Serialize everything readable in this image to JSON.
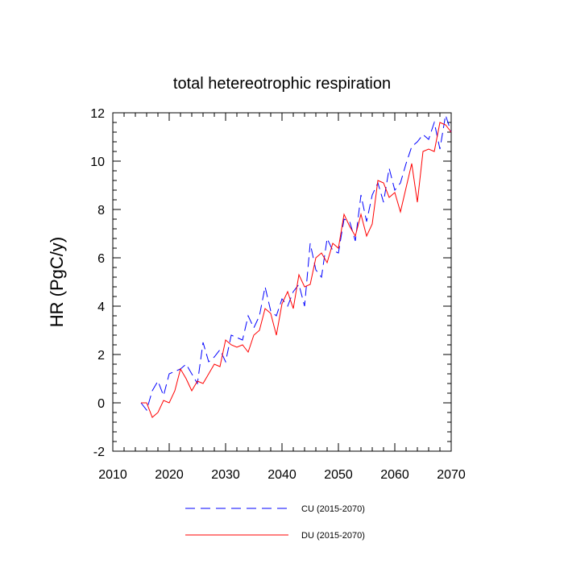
{
  "chart_data": {
    "type": "line",
    "title": "total hetereotrophic respiration",
    "xlabel": "",
    "ylabel": "HR  (PgC/y)",
    "xlim": [
      2010,
      2070
    ],
    "ylim": [
      -2,
      12
    ],
    "xticks": [
      2010,
      2020,
      2030,
      2040,
      2050,
      2060,
      2070
    ],
    "yticks": [
      -2,
      0,
      2,
      4,
      6,
      8,
      10,
      12
    ],
    "grid": false,
    "legend_position": "bottom",
    "x": [
      2015,
      2016,
      2017,
      2018,
      2019,
      2020,
      2021,
      2022,
      2023,
      2024,
      2025,
      2026,
      2027,
      2028,
      2029,
      2030,
      2031,
      2032,
      2033,
      2034,
      2035,
      2036,
      2037,
      2038,
      2039,
      2040,
      2041,
      2042,
      2043,
      2044,
      2045,
      2046,
      2047,
      2048,
      2049,
      2050,
      2051,
      2052,
      2053,
      2054,
      2055,
      2056,
      2057,
      2058,
      2059,
      2060,
      2061,
      2062,
      2063,
      2064,
      2065,
      2066,
      2067,
      2068,
      2069,
      2070
    ],
    "series": [
      {
        "name": "CU (2015-2070)",
        "color": "#0000ff",
        "style": "dashed",
        "values": [
          0.0,
          -0.3,
          0.5,
          0.9,
          0.3,
          1.2,
          1.3,
          1.4,
          1.6,
          1.2,
          0.8,
          2.5,
          1.7,
          1.9,
          2.2,
          1.7,
          2.8,
          2.7,
          2.6,
          3.6,
          3.1,
          3.6,
          4.8,
          3.8,
          3.6,
          4.3,
          4.0,
          4.6,
          4.9,
          4.0,
          6.6,
          5.5,
          5.2,
          6.8,
          6.3,
          6.2,
          7.6,
          7.5,
          6.7,
          8.6,
          7.5,
          8.6,
          9.1,
          8.3,
          9.7,
          8.8,
          9.1,
          9.9,
          10.6,
          10.8,
          11.1,
          10.9,
          11.6,
          10.5,
          11.9,
          11.2
        ]
      },
      {
        "name": "DU (2015-2070)",
        "color": "#ff0000",
        "style": "solid",
        "values": [
          0.0,
          0.0,
          -0.6,
          -0.4,
          0.1,
          0.0,
          0.5,
          1.4,
          1.0,
          0.5,
          0.9,
          0.8,
          1.2,
          1.6,
          1.5,
          2.6,
          2.4,
          2.3,
          2.4,
          2.1,
          2.8,
          3.0,
          3.9,
          3.7,
          2.8,
          4.1,
          4.6,
          3.9,
          5.3,
          4.8,
          4.9,
          6.0,
          6.2,
          5.8,
          6.6,
          6.4,
          7.8,
          7.3,
          6.9,
          7.8,
          6.9,
          7.4,
          9.2,
          9.1,
          8.5,
          8.7,
          7.9,
          8.9,
          9.9,
          8.3,
          10.4,
          10.5,
          10.4,
          11.6,
          11.5,
          11.2
        ]
      }
    ]
  }
}
